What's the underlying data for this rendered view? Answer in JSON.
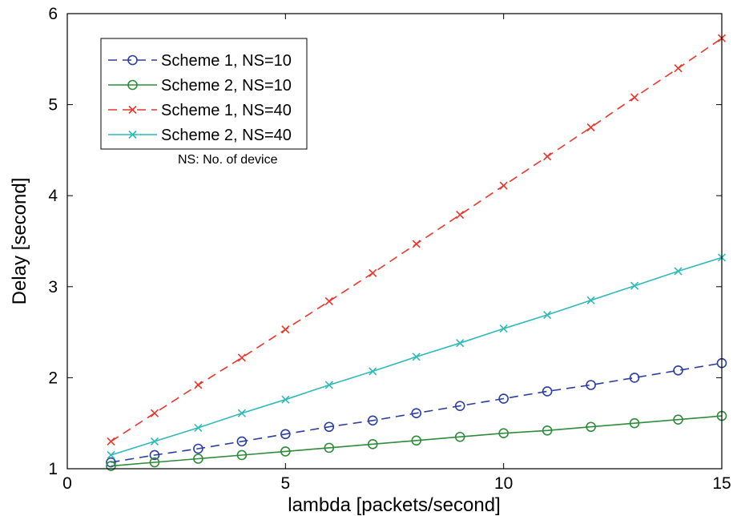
{
  "chart_data": {
    "type": "line",
    "xlabel": "lambda [packets/second]",
    "ylabel": "Delay [second]",
    "xlim": [
      0,
      15
    ],
    "ylim": [
      1,
      6
    ],
    "xticks": [
      0,
      5,
      10,
      15
    ],
    "yticks": [
      1,
      2,
      3,
      4,
      5,
      6
    ],
    "grid": false,
    "legend_position": "top-left",
    "annotation": "NS: No. of device",
    "x": [
      1,
      2,
      3,
      4,
      5,
      6,
      7,
      8,
      9,
      10,
      11,
      12,
      13,
      14,
      15
    ],
    "series": [
      {
        "name": "Scheme 1, NS=10",
        "color": "#2b3f9e",
        "line_style": "dashed",
        "marker": "circle",
        "values": [
          1.07,
          1.15,
          1.22,
          1.3,
          1.38,
          1.46,
          1.53,
          1.61,
          1.69,
          1.77,
          1.85,
          1.92,
          2.0,
          2.08,
          2.16
        ]
      },
      {
        "name": "Scheme 2, NS=10",
        "color": "#2e8b3a",
        "line_style": "solid",
        "marker": "circle",
        "values": [
          1.03,
          1.07,
          1.11,
          1.15,
          1.19,
          1.23,
          1.27,
          1.31,
          1.35,
          1.39,
          1.42,
          1.46,
          1.5,
          1.54,
          1.58
        ]
      },
      {
        "name": "Scheme 1, NS=40",
        "color": "#e8372c",
        "line_style": "dashed",
        "marker": "x",
        "values": [
          1.3,
          1.61,
          1.92,
          2.22,
          2.53,
          2.84,
          3.15,
          3.47,
          3.79,
          4.11,
          4.43,
          4.75,
          5.08,
          5.4,
          5.73
        ]
      },
      {
        "name": "Scheme 2, NS=40",
        "color": "#2fb9b9",
        "line_style": "solid",
        "marker": "x",
        "values": [
          1.15,
          1.3,
          1.45,
          1.61,
          1.76,
          1.92,
          2.07,
          2.23,
          2.38,
          2.54,
          2.69,
          2.85,
          3.01,
          3.17,
          3.32
        ]
      }
    ]
  }
}
